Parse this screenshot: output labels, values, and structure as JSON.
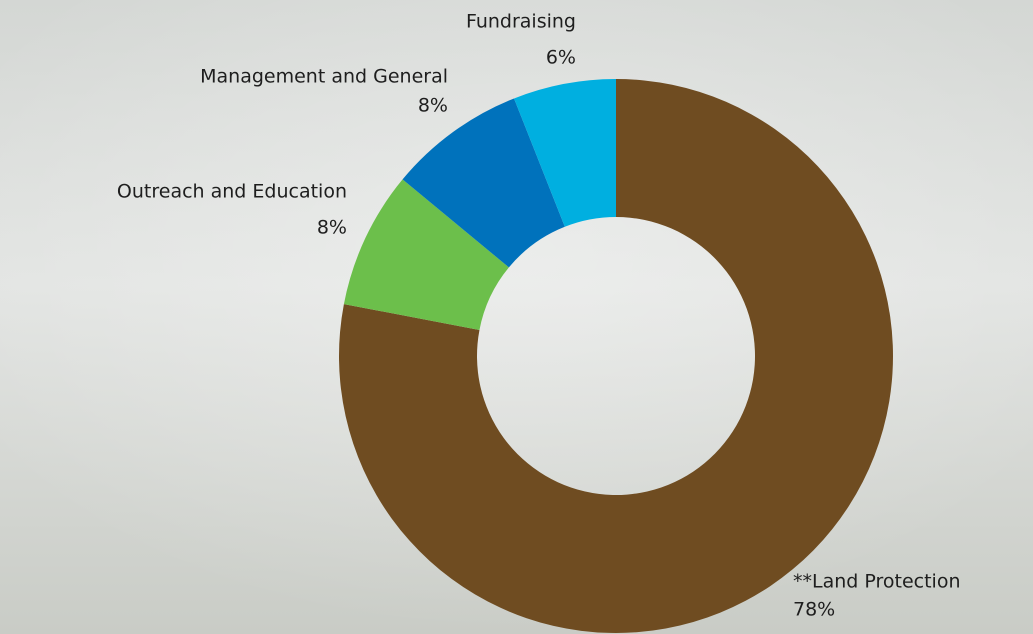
{
  "chart_data": {
    "type": "donut",
    "categories": [
      "**Land Protection",
      "Outreach and Education",
      "Management and General",
      "Fundraising"
    ],
    "values": [
      78,
      8,
      8,
      6
    ],
    "value_labels": [
      "78%",
      "8%",
      "8%",
      "6%"
    ],
    "colors": [
      "#6f4c21",
      "#6cbf4b",
      "#0072bc",
      "#00afe0"
    ]
  }
}
